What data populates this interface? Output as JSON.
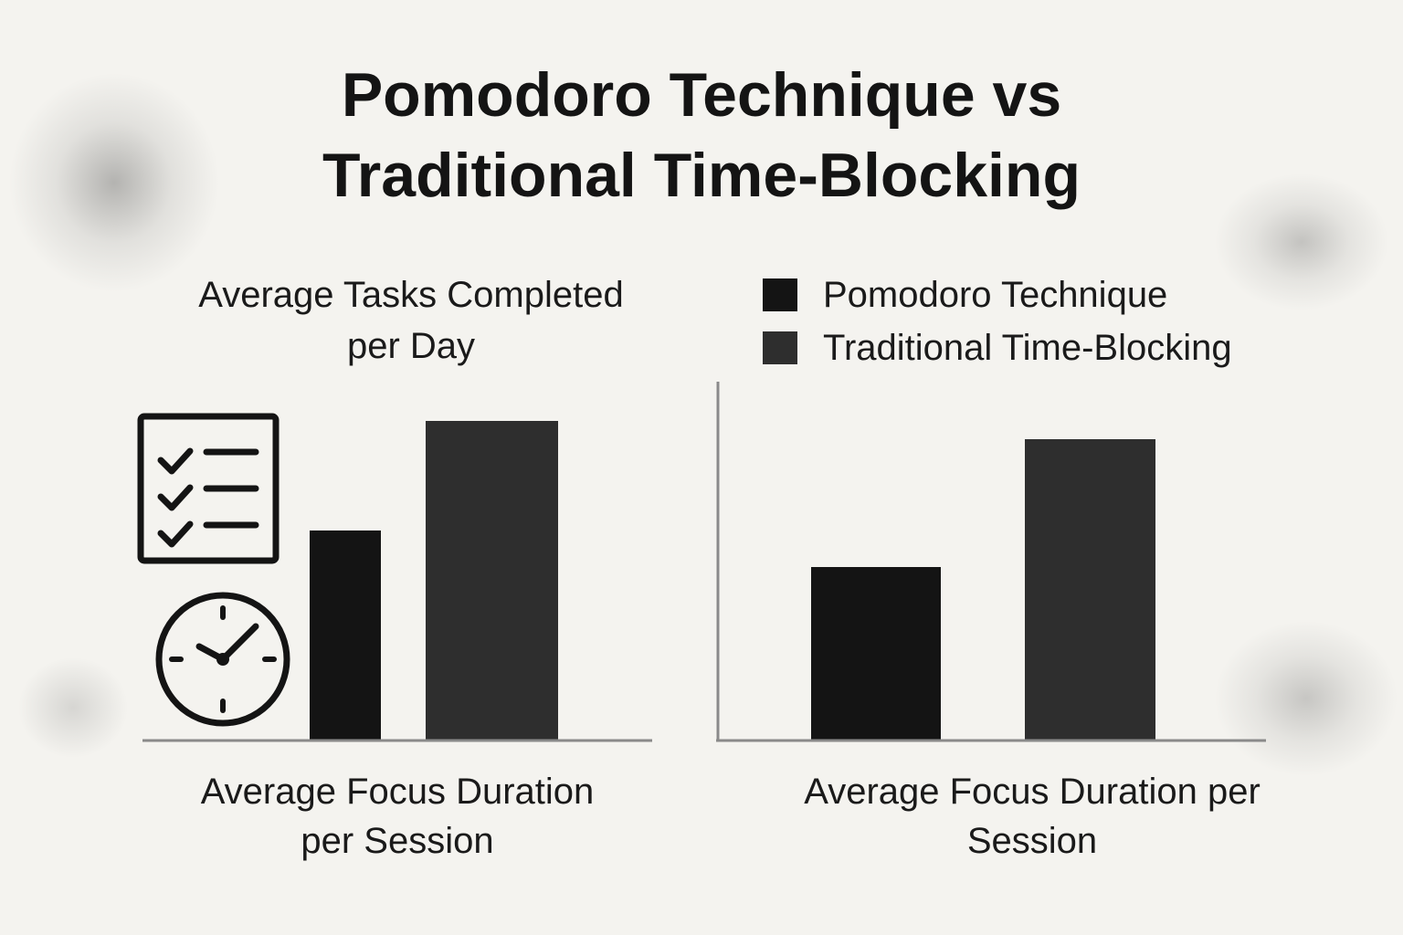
{
  "title_lines": [
    "Pomodoro Technique vs",
    "Traditional Time-Blocking"
  ],
  "legend": [
    {
      "label": "Pomodoro Technique",
      "color": "#141414"
    },
    {
      "label": "Traditional Time-Blocking",
      "color": "#2e2e2e"
    }
  ],
  "icons": [
    "checklist-icon",
    "clock-icon"
  ],
  "chart_data": [
    {
      "type": "bar",
      "title": "Average Tasks Completed per Day",
      "xlabel": "Average Focus Duration per Session",
      "ylabel": "",
      "series": [
        {
          "name": "Pomodoro Technique",
          "values": [
            2.3
          ]
        },
        {
          "name": "Traditional Time-Blocking",
          "values": [
            3.5
          ]
        }
      ],
      "ylim": [
        0,
        4
      ],
      "grid": false
    },
    {
      "type": "bar",
      "title": "",
      "xlabel": "Average Focus Duration per Session",
      "ylabel": "",
      "series": [
        {
          "name": "Pomodoro Technique",
          "values": [
            1.9
          ]
        },
        {
          "name": "Traditional Time-Blocking",
          "values": [
            3.3
          ]
        }
      ],
      "ylim": [
        0,
        4
      ],
      "grid": false,
      "legend_position": "top"
    }
  ]
}
